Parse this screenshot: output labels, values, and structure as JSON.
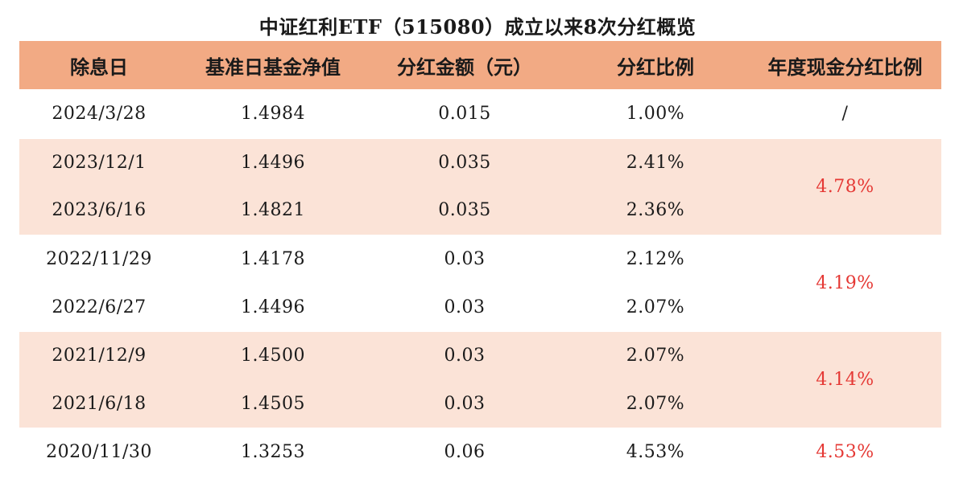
{
  "title": "中证红利ETF（515080）成立以来8次分红概览",
  "headers": [
    "除息日",
    "基准日基金净值",
    "分红金额（元）",
    "分红比例",
    "年度现金分红比例"
  ],
  "groups": [
    {
      "annual": "/",
      "rows": [
        {
          "date": "2024/3/28",
          "nav": "1.4984",
          "amount": "0.015",
          "ratio": "1.00%"
        }
      ]
    },
    {
      "annual": "4.78%",
      "rows": [
        {
          "date": "2023/12/1",
          "nav": "1.4496",
          "amount": "0.035",
          "ratio": "2.41%"
        },
        {
          "date": "2023/6/16",
          "nav": "1.4821",
          "amount": "0.035",
          "ratio": "2.36%"
        }
      ]
    },
    {
      "annual": "4.19%",
      "rows": [
        {
          "date": "2022/11/29",
          "nav": "1.4178",
          "amount": "0.03",
          "ratio": "2.12%"
        },
        {
          "date": "2022/6/27",
          "nav": "1.4496",
          "amount": "0.03",
          "ratio": "2.07%"
        }
      ]
    },
    {
      "annual": "4.14%",
      "rows": [
        {
          "date": "2021/12/9",
          "nav": "1.4500",
          "amount": "0.03",
          "ratio": "2.07%"
        },
        {
          "date": "2021/6/18",
          "nav": "1.4505",
          "amount": "0.03",
          "ratio": "2.07%"
        }
      ]
    },
    {
      "annual": "4.53%",
      "rows": [
        {
          "date": "2020/11/30",
          "nav": "1.3253",
          "amount": "0.06",
          "ratio": "4.53%"
        }
      ]
    }
  ],
  "colors": {
    "header_bg": "#f2aa84",
    "shaded_bg": "#fbe3d7",
    "annual_text": "#e53935"
  }
}
